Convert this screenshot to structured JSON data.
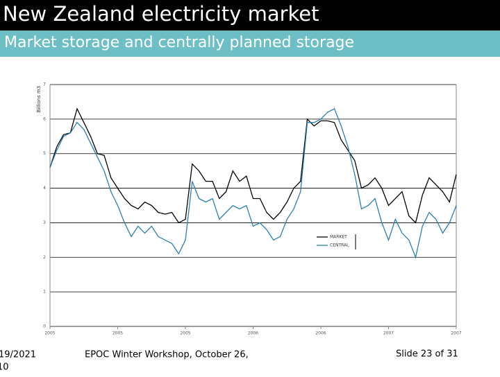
{
  "header": {
    "title": "New Zealand electricity market",
    "subtitle": "Market storage and centrally planned storage"
  },
  "chart_data": {
    "type": "line",
    "ylabel": "Billions m3",
    "categories": [
      "2005",
      null,
      null,
      null,
      null,
      null,
      null,
      null,
      null,
      null,
      "2005",
      null,
      null,
      null,
      null,
      null,
      null,
      null,
      null,
      null,
      "2005",
      null,
      null,
      null,
      null,
      null,
      null,
      null,
      null,
      null,
      "2006",
      null,
      null,
      null,
      null,
      null,
      null,
      null,
      null,
      null,
      "2006",
      null,
      null,
      null,
      null,
      null,
      null,
      null,
      null,
      null,
      "2007",
      null,
      null,
      null,
      null,
      null,
      null,
      null,
      null,
      null,
      "2007"
    ],
    "series": [
      {
        "name": "MARKET",
        "color": "#000000",
        "values": [
          4.6,
          5.2,
          5.55,
          5.6,
          6.3,
          5.9,
          5.5,
          5.0,
          4.95,
          4.3,
          4.0,
          3.7,
          3.5,
          3.4,
          3.6,
          3.5,
          3.3,
          3.25,
          3.3,
          3.0,
          3.1,
          4.7,
          4.5,
          4.2,
          4.2,
          3.7,
          3.9,
          4.5,
          4.2,
          4.35,
          3.7,
          3.7,
          3.3,
          3.1,
          3.3,
          3.6,
          4.0,
          4.2,
          6.0,
          5.8,
          5.95,
          5.95,
          5.9,
          5.4,
          5.1,
          4.8,
          4.0,
          4.1,
          4.3,
          4.0,
          3.5,
          3.7,
          3.9,
          3.2,
          3.0,
          3.8,
          4.3,
          4.1,
          3.9,
          3.6,
          4.4
        ]
      },
      {
        "name": "CENTRAL",
        "color": "#2a7fb0",
        "values": [
          4.6,
          5.1,
          5.5,
          5.6,
          5.9,
          5.7,
          5.3,
          4.9,
          4.5,
          3.9,
          3.5,
          3.0,
          2.6,
          2.9,
          2.7,
          2.9,
          2.6,
          2.5,
          2.4,
          2.1,
          2.5,
          4.2,
          3.7,
          3.6,
          3.7,
          3.1,
          3.3,
          3.5,
          3.4,
          3.5,
          2.9,
          3.0,
          2.8,
          2.5,
          2.6,
          3.1,
          3.4,
          3.9,
          5.9,
          5.9,
          6.0,
          6.2,
          6.3,
          5.8,
          5.2,
          4.4,
          3.4,
          3.5,
          3.7,
          3.0,
          2.5,
          3.1,
          2.7,
          2.5,
          2.0,
          2.9,
          3.3,
          3.1,
          2.7,
          3.0,
          3.5
        ]
      }
    ],
    "ylim": [
      0,
      7
    ],
    "yticks": [
      0,
      1,
      2,
      3,
      4,
      5,
      6,
      7
    ],
    "grid": true
  },
  "footer": {
    "date": "19/2021",
    "date_line2": "10",
    "event": "EPOC Winter Workshop, October 26,",
    "slide": "Slide 23 of 31"
  }
}
